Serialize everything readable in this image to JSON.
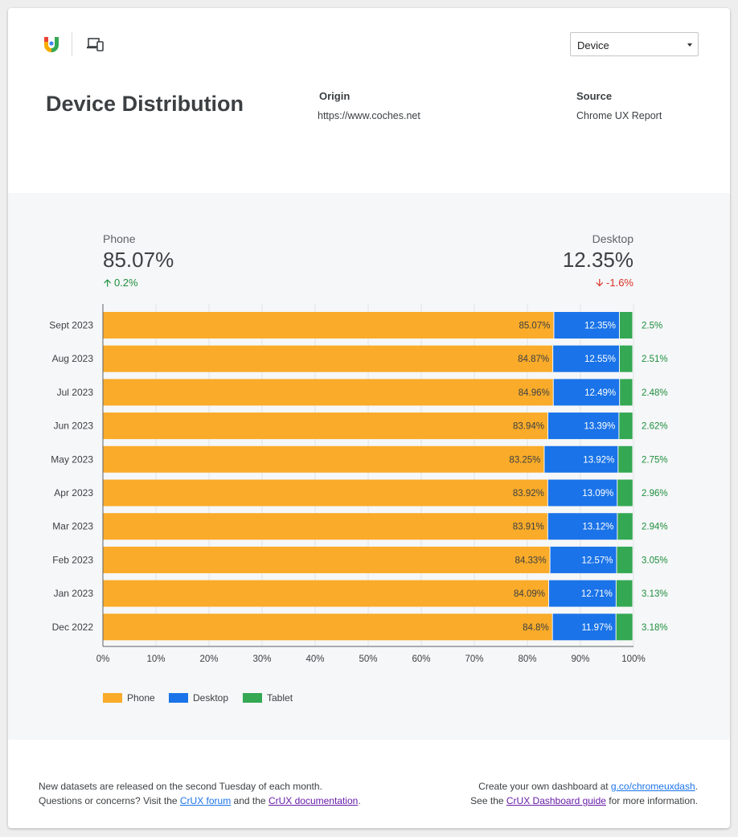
{
  "header": {
    "device_select": "Device",
    "title": "Device Distribution",
    "origin_label": "Origin",
    "origin_value": "https://www.coches.net",
    "source_label": "Source",
    "source_value": "Chrome UX Report"
  },
  "summary": {
    "phone": {
      "label": "Phone",
      "value": "85.07%",
      "delta": "0.2%"
    },
    "desktop": {
      "label": "Desktop",
      "value": "12.35%",
      "delta": "-1.6%"
    }
  },
  "colors": {
    "phone": "#f9ab29",
    "desktop": "#1a73e8",
    "tablet": "#34a853",
    "tablet_text": "#1e8e3e"
  },
  "chart_data": {
    "type": "bar",
    "orientation": "horizontal",
    "stacked": true,
    "categories": [
      "Sept 2023",
      "Aug 2023",
      "Jul 2023",
      "Jun 2023",
      "May 2023",
      "Apr 2023",
      "Mar 2023",
      "Feb 2023",
      "Jan 2023",
      "Dec 2022"
    ],
    "series": [
      {
        "name": "Phone",
        "values": [
          85.07,
          84.87,
          84.96,
          83.94,
          83.25,
          83.92,
          83.91,
          84.33,
          84.09,
          84.8
        ],
        "labels": [
          "85.07%",
          "84.87%",
          "84.96%",
          "83.94%",
          "83.25%",
          "83.92%",
          "83.91%",
          "84.33%",
          "84.09%",
          "84.8%"
        ]
      },
      {
        "name": "Desktop",
        "values": [
          12.35,
          12.55,
          12.49,
          13.39,
          13.92,
          13.09,
          13.12,
          12.57,
          12.71,
          11.97
        ],
        "labels": [
          "12.35%",
          "12.55%",
          "12.49%",
          "13.39%",
          "13.92%",
          "13.09%",
          "13.12%",
          "12.57%",
          "12.71%",
          "11.97%"
        ]
      },
      {
        "name": "Tablet",
        "values": [
          2.5,
          2.51,
          2.48,
          2.62,
          2.75,
          2.96,
          2.94,
          3.05,
          3.13,
          3.18
        ],
        "labels": [
          "2.5%",
          "2.51%",
          "2.48%",
          "2.62%",
          "2.75%",
          "2.96%",
          "2.94%",
          "3.05%",
          "3.13%",
          "3.18%"
        ]
      }
    ],
    "xlim": [
      0,
      100
    ],
    "xticks": [
      "0%",
      "10%",
      "20%",
      "30%",
      "40%",
      "50%",
      "60%",
      "70%",
      "80%",
      "90%",
      "100%"
    ],
    "legend": [
      "Phone",
      "Desktop",
      "Tablet"
    ],
    "legend_position": "bottom-left"
  },
  "footer": {
    "line1": "New datasets are released on the second Tuesday of each month.",
    "line2_pre": "Questions or concerns? Visit the ",
    "forum_link": "CrUX forum",
    "line2_mid": " and the ",
    "docs_link": "CrUX documentation",
    "line2_post": ".",
    "r1_pre": "Create your own dashboard at ",
    "r1_link": "g.co/chromeuxdash",
    "r1_post": ".",
    "r2_pre": "See the ",
    "r2_link": "CrUX Dashboard guide",
    "r2_post": " for more information."
  }
}
